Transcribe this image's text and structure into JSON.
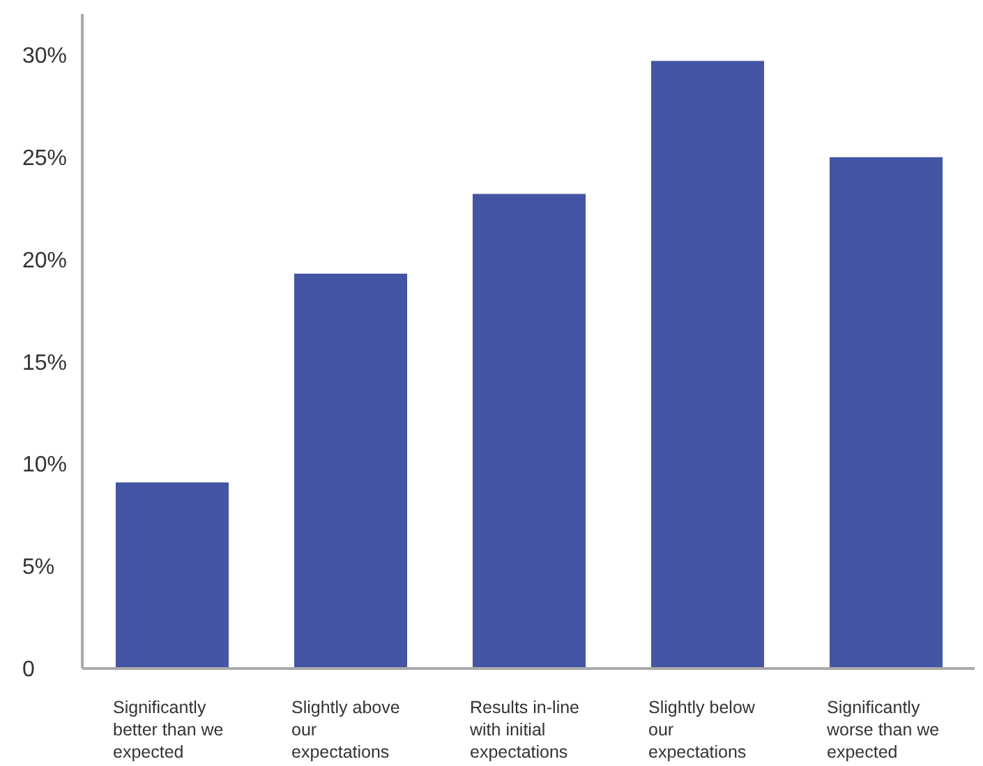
{
  "chart_data": {
    "type": "bar",
    "categories": [
      "Significantly better than we expected",
      "Slightly above our expectations",
      "Results in-line with initial expectations",
      "Slightly below our expectations",
      "Significantly worse than we expected"
    ],
    "values": [
      9.1,
      19.3,
      23.2,
      29.7,
      25.0
    ],
    "color": "#4355a4",
    "ylim": [
      0,
      32
    ],
    "yticks": [
      {
        "value": 0,
        "label": "0"
      },
      {
        "value": 5,
        "label": "5%"
      },
      {
        "value": 10,
        "label": "10%"
      },
      {
        "value": 15,
        "label": "15%"
      },
      {
        "value": 20,
        "label": "20%"
      },
      {
        "value": 25,
        "label": "25%"
      },
      {
        "value": 30,
        "label": "30%"
      }
    ],
    "grid": false,
    "legend": false
  }
}
